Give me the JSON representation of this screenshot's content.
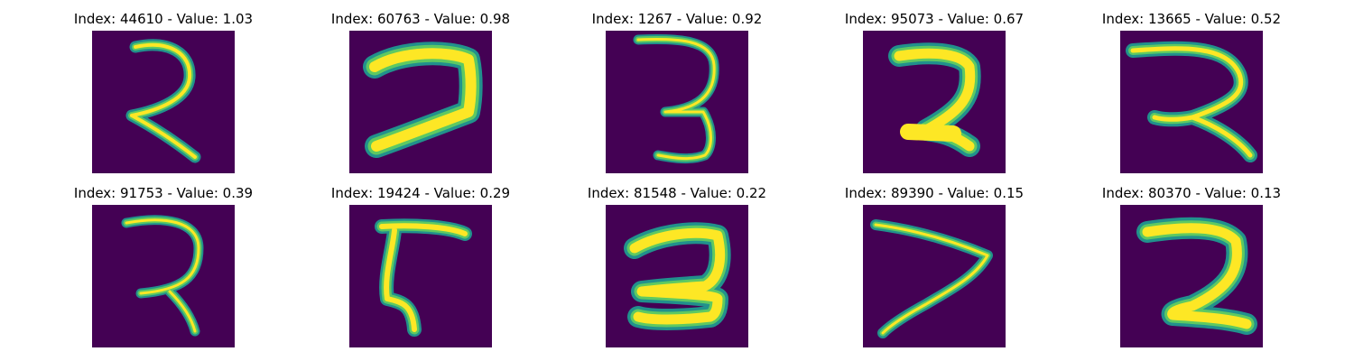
{
  "figure": {
    "background_color": "#440154",
    "stroke_outer_color": "#21918c",
    "stroke_mid_color": "#5ec962",
    "stroke_core_color": "#fde725",
    "panels": [
      {
        "title": "Index: 44610 - Value: 1.03",
        "glyph": "digit-2-outline"
      },
      {
        "title": "Index: 60763 - Value: 0.98",
        "glyph": "digit-2-bold"
      },
      {
        "title": "Index: 1267 - Value: 0.92",
        "glyph": "digit-3-thin"
      },
      {
        "title": "Index: 95073 - Value: 0.67",
        "glyph": "digit-2-blocky"
      },
      {
        "title": "Index: 13665 - Value: 0.52",
        "glyph": "digit-2-looped"
      },
      {
        "title": "Index: 91753 - Value: 0.39",
        "glyph": "digit-2-thin"
      },
      {
        "title": "Index: 19424 - Value: 0.29",
        "glyph": "digit-5-like"
      },
      {
        "title": "Index: 81548 - Value: 0.22",
        "glyph": "digit-2-bold"
      },
      {
        "title": "Index: 89390 - Value: 0.15",
        "glyph": "digit-7-like"
      },
      {
        "title": "Index: 80370 - Value: 0.13",
        "glyph": "digit-2-rounded"
      }
    ]
  }
}
